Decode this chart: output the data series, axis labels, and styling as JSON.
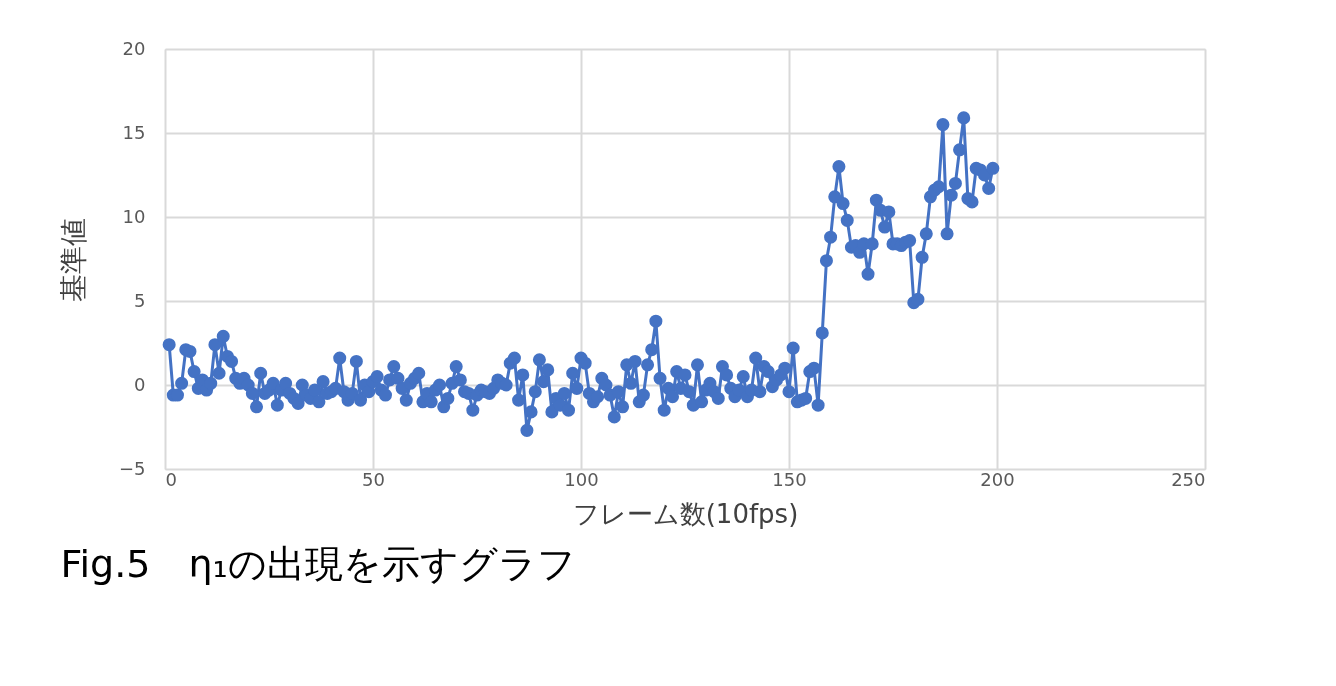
{
  "chart_data": {
    "type": "line",
    "xlabel": "フレーム数(10fps)",
    "ylabel": "基準値",
    "annotations": [
      "Fig.5　η₁の出現を示すグラフ"
    ],
    "x": [
      1,
      2,
      3,
      4,
      5,
      6,
      7,
      8,
      9,
      10,
      11,
      12,
      13,
      14,
      15,
      16,
      17,
      18,
      19,
      20,
      21,
      22,
      23,
      24,
      25,
      26,
      27,
      28,
      29,
      30,
      31,
      32,
      33,
      34,
      35,
      36,
      37,
      38,
      39,
      40,
      41,
      42,
      43,
      44,
      45,
      46,
      47,
      48,
      49,
      50,
      51,
      52,
      53,
      54,
      55,
      56,
      57,
      58,
      59,
      60,
      61,
      62,
      63,
      64,
      65,
      66,
      67,
      68,
      69,
      70,
      71,
      72,
      73,
      74,
      75,
      76,
      77,
      78,
      79,
      80,
      81,
      82,
      83,
      84,
      85,
      86,
      87,
      88,
      89,
      90,
      91,
      92,
      93,
      94,
      95,
      96,
      97,
      98,
      99,
      100,
      101,
      102,
      103,
      104,
      105,
      106,
      107,
      108,
      109,
      110,
      111,
      112,
      113,
      114,
      115,
      116,
      117,
      118,
      119,
      120,
      121,
      122,
      123,
      124,
      125,
      126,
      127,
      128,
      129,
      130,
      131,
      132,
      133,
      134,
      135,
      136,
      137,
      138,
      139,
      140,
      141,
      142,
      143,
      144,
      145,
      146,
      147,
      148,
      149,
      150,
      151,
      152,
      153,
      154,
      155,
      156,
      157,
      158,
      159,
      160,
      161,
      162,
      163,
      164,
      165,
      166,
      167,
      168,
      169,
      170,
      171,
      172,
      173,
      174,
      175,
      176,
      177,
      178,
      179,
      180,
      181,
      182,
      183,
      184,
      185,
      186,
      187,
      188,
      189,
      190,
      191,
      192,
      193,
      194,
      195,
      196,
      197,
      198,
      199
    ],
    "series": [
      {
        "color": "#4472c4",
        "values": [
          2.4,
          -0.6,
          -0.6,
          0.1,
          2.1,
          2.0,
          0.8,
          -0.2,
          0.3,
          -0.3,
          0.1,
          2.4,
          0.7,
          2.9,
          1.7,
          1.4,
          0.4,
          0.1,
          0.4,
          0.0,
          -0.5,
          -1.3,
          0.7,
          -0.5,
          -0.3,
          0.1,
          -1.2,
          -0.3,
          0.1,
          -0.5,
          -0.8,
          -1.1,
          0.0,
          -0.6,
          -0.8,
          -0.3,
          -1.0,
          0.2,
          -0.5,
          -0.4,
          -0.2,
          1.6,
          -0.4,
          -0.9,
          -0.5,
          1.4,
          -0.9,
          0.0,
          -0.4,
          0.2,
          0.5,
          -0.3,
          -0.6,
          0.3,
          1.1,
          0.4,
          -0.2,
          -0.9,
          0.1,
          0.4,
          0.7,
          -1.0,
          -0.5,
          -1.0,
          -0.3,
          0.0,
          -1.3,
          -0.8,
          0.1,
          1.1,
          0.3,
          -0.4,
          -0.5,
          -1.5,
          -0.6,
          -0.3,
          -0.4,
          -0.5,
          -0.2,
          0.3,
          0.1,
          0.0,
          1.3,
          1.6,
          -0.9,
          0.6,
          -2.7,
          -1.6,
          -0.4,
          1.5,
          0.2,
          0.9,
          -1.6,
          -0.8,
          -1.2,
          -0.5,
          -1.5,
          0.7,
          -0.2,
          1.6,
          1.3,
          -0.5,
          -1.0,
          -0.7,
          0.4,
          0.0,
          -0.6,
          -1.9,
          -0.4,
          -1.3,
          1.2,
          0.1,
          1.4,
          -1.0,
          -0.6,
          1.2,
          2.1,
          3.8,
          0.4,
          -1.5,
          -0.2,
          -0.7,
          0.8,
          -0.2,
          0.6,
          -0.4,
          -1.2,
          1.2,
          -1.0,
          -0.3,
          0.1,
          -0.4,
          -0.8,
          1.1,
          0.6,
          -0.2,
          -0.7,
          -0.3,
          0.5,
          -0.7,
          -0.3,
          1.6,
          -0.4,
          1.1,
          0.8,
          -0.1,
          0.3,
          0.6,
          1.0,
          -0.4,
          2.2,
          -1.0,
          -0.9,
          -0.8,
          0.8,
          1.0,
          -1.2,
          3.1,
          7.4,
          8.8,
          11.2,
          13.0,
          10.8,
          9.8,
          8.2,
          8.3,
          7.9,
          8.4,
          6.6,
          8.4,
          11.0,
          10.4,
          9.4,
          10.3,
          8.4,
          8.4,
          8.3,
          8.5,
          8.6,
          4.9,
          5.1,
          7.6,
          9.0,
          11.2,
          11.6,
          11.8,
          15.5,
          9.0,
          11.3,
          12.0,
          14.0,
          15.9,
          11.1,
          10.9,
          12.9,
          12.8,
          12.5,
          11.7,
          12.9
        ]
      }
    ],
    "xlim": [
      0,
      250
    ],
    "xticks": [
      0,
      50,
      100,
      150,
      200,
      250
    ],
    "ylim": [
      -5,
      20
    ],
    "yticks": [
      -5,
      0,
      5,
      10,
      15,
      20
    ],
    "grid": true,
    "marker": "circle",
    "line_style": "solid"
  }
}
